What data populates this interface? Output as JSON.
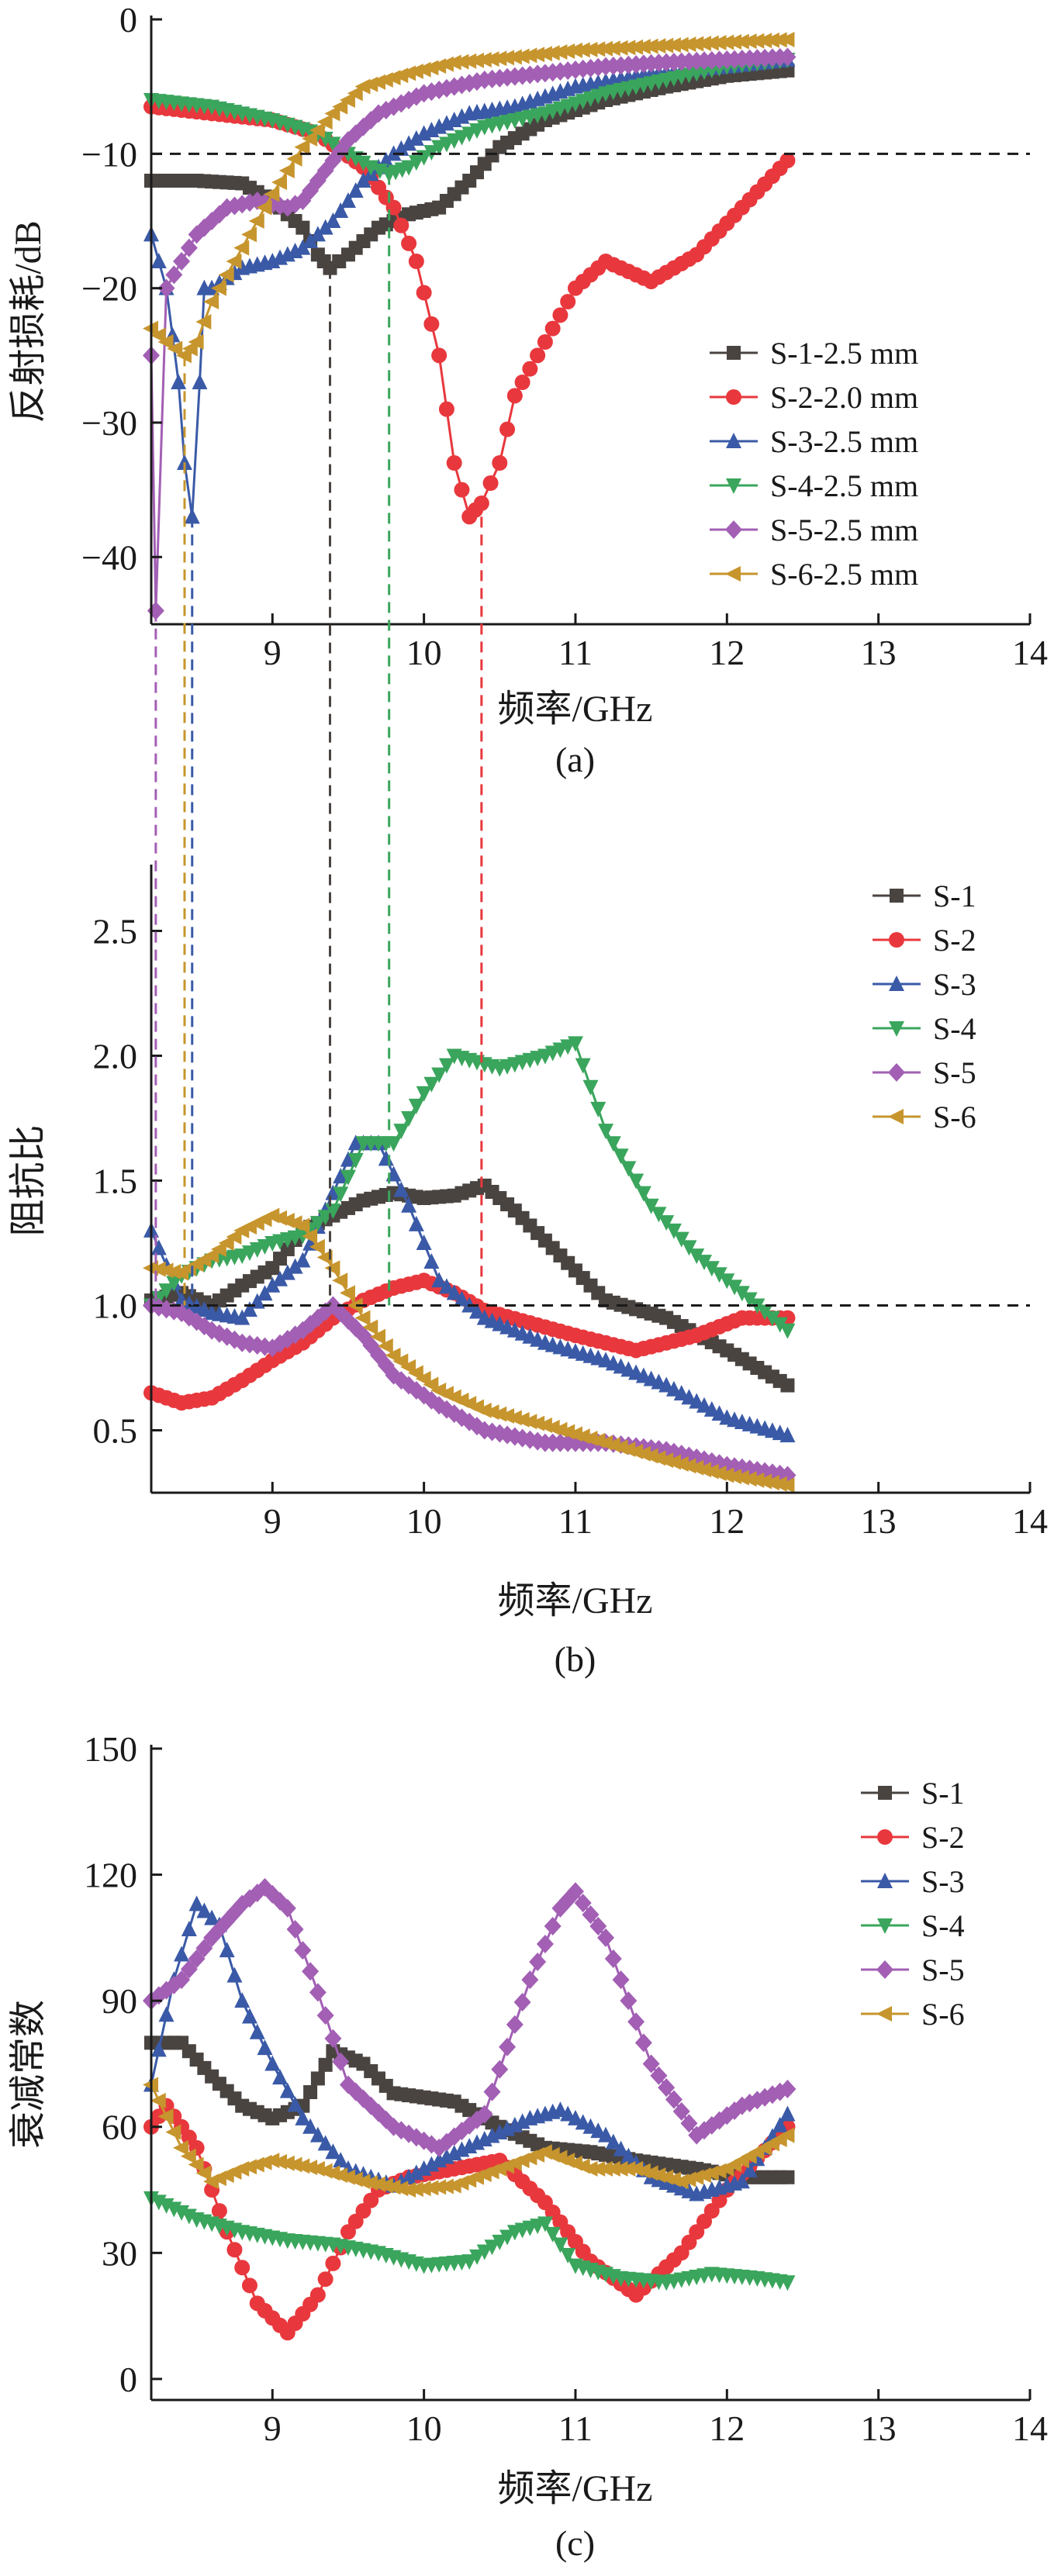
{
  "colors": {
    "S-1": "#4a4441",
    "S-2": "#e8383d",
    "S-3": "#3a5aa7",
    "S-4": "#3aa55c",
    "S-5": "#a25fb4",
    "S-6": "#c7952d"
  },
  "chart_data": [
    {
      "type": "line",
      "panel_label": "(a)",
      "xlabel": "频率/GHz",
      "ylabel": "反射损耗/dB",
      "xlim": [
        8.2,
        14
      ],
      "ylim": [
        -45,
        0
      ],
      "xticks": [
        9,
        10,
        11,
        12,
        13,
        14
      ],
      "yticks": [
        0,
        -10,
        -20,
        -30,
        -40
      ],
      "xtick_labels": [
        "9",
        "10",
        "11",
        "12",
        "13",
        "14"
      ],
      "ytick_labels": [
        "0",
        "−10",
        "−20",
        "−30",
        "−40"
      ],
      "legend_position": "right",
      "reference_hline": -10,
      "vlines_down": [
        {
          "series": "S-1",
          "x": 9.38,
          "y_top": -18.5
        },
        {
          "series": "S-2",
          "x": 10.38,
          "y_top": -37
        },
        {
          "series": "S-3",
          "x": 8.47,
          "y_top": -37
        },
        {
          "series": "S-4",
          "x": 9.77,
          "y_top": -11.5
        },
        {
          "series": "S-5",
          "x": 8.23,
          "y_top": -44
        },
        {
          "series": "S-6",
          "x": 8.42,
          "y_top": -25
        }
      ],
      "series": [
        {
          "name": "S-1-2.5 mm",
          "key": "S-1",
          "marker": "square",
          "x": [
            8.2,
            8.5,
            8.8,
            9.0,
            9.2,
            9.3,
            9.38,
            9.5,
            9.7,
            9.9,
            10.1,
            10.3,
            10.5,
            10.8,
            11.2,
            11.6,
            12.0,
            12.4
          ],
          "y": [
            -12,
            -12,
            -12.2,
            -13.5,
            -15.5,
            -17.5,
            -18.5,
            -17.5,
            -15.5,
            -14.5,
            -14,
            -12,
            -9.5,
            -7.5,
            -6,
            -5,
            -4.2,
            -3.8
          ]
        },
        {
          "name": "S-2-2.0 mm",
          "key": "S-2",
          "marker": "circle",
          "x": [
            8.2,
            8.6,
            9.0,
            9.3,
            9.6,
            9.8,
            9.95,
            10.1,
            10.2,
            10.3,
            10.38,
            10.5,
            10.6,
            10.8,
            11.0,
            11.2,
            11.5,
            11.8,
            12.1,
            12.4
          ],
          "y": [
            -6.5,
            -7,
            -7.5,
            -8.5,
            -11,
            -14,
            -18,
            -25,
            -33,
            -37,
            -36,
            -33,
            -28,
            -24,
            -20,
            -18,
            -19.5,
            -17.5,
            -14,
            -10.5
          ]
        },
        {
          "name": "S-3-2.5 mm",
          "key": "S-3",
          "marker": "triangle-up",
          "x": [
            8.2,
            8.3,
            8.38,
            8.42,
            8.47,
            8.52,
            8.55,
            8.6,
            8.8,
            9.0,
            9.2,
            9.4,
            9.6,
            9.8,
            10.0,
            10.3,
            10.6,
            11.0,
            11.5,
            12.0,
            12.4
          ],
          "y": [
            -16,
            -20,
            -27,
            -33,
            -37,
            -27,
            -20,
            -20,
            -18.5,
            -18,
            -17,
            -15,
            -12,
            -10,
            -8.5,
            -7,
            -6.5,
            -5,
            -4,
            -3.5,
            -3
          ]
        },
        {
          "name": "S-4-2.5 mm",
          "key": "S-4",
          "marker": "triangle-down",
          "x": [
            8.2,
            8.6,
            9.0,
            9.3,
            9.5,
            9.65,
            9.77,
            9.9,
            10.1,
            10.4,
            10.8,
            11.2,
            11.6,
            12.0,
            12.4
          ],
          "y": [
            -6,
            -6.5,
            -7.5,
            -8.5,
            -10,
            -11,
            -11.5,
            -11,
            -9.5,
            -8,
            -7,
            -5.5,
            -4.5,
            -3.5,
            -3
          ]
        },
        {
          "name": "S-5-2.5 mm",
          "key": "S-5",
          "marker": "diamond",
          "x": [
            8.2,
            8.23,
            8.3,
            8.5,
            8.7,
            8.9,
            9.1,
            9.2,
            9.3,
            9.5,
            9.7,
            10.0,
            10.4,
            10.8,
            11.2,
            11.6,
            12.0,
            12.4
          ],
          "y": [
            -25,
            -44,
            -20,
            -16,
            -14,
            -13.5,
            -14,
            -13.5,
            -12,
            -9,
            -7,
            -5.5,
            -4.5,
            -4,
            -3.5,
            -3.2,
            -3,
            -2.8
          ]
        },
        {
          "name": "S-6-2.5 mm",
          "key": "S-6",
          "marker": "triangle-left",
          "x": [
            8.2,
            8.3,
            8.42,
            8.5,
            8.6,
            8.8,
            9.0,
            9.2,
            9.4,
            9.6,
            9.9,
            10.2,
            10.6,
            11.0,
            11.5,
            12.0,
            12.4
          ],
          "y": [
            -23,
            -24,
            -25,
            -24,
            -21,
            -17,
            -13,
            -9.5,
            -7,
            -5,
            -4,
            -3.2,
            -2.8,
            -2.3,
            -2,
            -1.7,
            -1.5
          ]
        }
      ]
    },
    {
      "type": "line",
      "panel_label": "(b)",
      "xlabel": "频率/GHz",
      "ylabel": "阻抗比",
      "xlim": [
        8.2,
        14
      ],
      "ylim": [
        0.25,
        2.75
      ],
      "xticks": [
        9,
        10,
        11,
        12,
        13,
        14
      ],
      "yticks": [
        0.5,
        1.0,
        1.5,
        2.0,
        2.5
      ],
      "xtick_labels": [
        "9",
        "10",
        "11",
        "12",
        "13",
        "14"
      ],
      "ytick_labels": [
        "0.5",
        "1.0",
        "1.5",
        "2.0",
        "2.5"
      ],
      "legend_position": "right",
      "reference_hline": 1.0,
      "series": [
        {
          "name": "S-1",
          "key": "S-1",
          "marker": "square",
          "x": [
            8.2,
            8.4,
            8.6,
            8.8,
            9.0,
            9.2,
            9.4,
            9.6,
            9.8,
            10.0,
            10.2,
            10.4,
            10.6,
            10.9,
            11.2,
            11.6,
            12.0,
            12.4
          ],
          "y": [
            1.02,
            1.05,
            1.0,
            1.08,
            1.15,
            1.3,
            1.36,
            1.42,
            1.45,
            1.43,
            1.44,
            1.48,
            1.38,
            1.2,
            1.02,
            0.95,
            0.82,
            0.68
          ]
        },
        {
          "name": "S-2",
          "key": "S-2",
          "marker": "circle",
          "x": [
            8.2,
            8.4,
            8.6,
            8.8,
            9.0,
            9.2,
            9.4,
            9.6,
            9.8,
            10.0,
            10.2,
            10.4,
            10.7,
            11.0,
            11.4,
            11.8,
            12.1,
            12.4
          ],
          "y": [
            0.65,
            0.61,
            0.63,
            0.7,
            0.78,
            0.85,
            0.95,
            1.02,
            1.07,
            1.1,
            1.05,
            0.98,
            0.93,
            0.88,
            0.82,
            0.88,
            0.95,
            0.95
          ]
        },
        {
          "name": "S-3",
          "key": "S-3",
          "marker": "triangle-up",
          "x": [
            8.2,
            8.4,
            8.6,
            8.8,
            9.0,
            9.2,
            9.4,
            9.55,
            9.7,
            9.9,
            10.1,
            10.4,
            10.8,
            11.2,
            11.6,
            12.0,
            12.4
          ],
          "y": [
            1.3,
            1.02,
            0.97,
            0.95,
            1.08,
            1.18,
            1.45,
            1.65,
            1.65,
            1.4,
            1.1,
            0.95,
            0.85,
            0.78,
            0.68,
            0.55,
            0.48
          ]
        },
        {
          "name": "S-4",
          "key": "S-4",
          "marker": "triangle-down",
          "x": [
            8.2,
            8.4,
            8.6,
            8.8,
            9.0,
            9.2,
            9.4,
            9.6,
            9.8,
            10.0,
            10.2,
            10.5,
            10.8,
            11.0,
            11.2,
            11.5,
            11.8,
            12.1,
            12.4
          ],
          "y": [
            1.0,
            1.12,
            1.18,
            1.2,
            1.25,
            1.28,
            1.38,
            1.65,
            1.65,
            1.85,
            2.0,
            1.95,
            2.0,
            2.05,
            1.7,
            1.4,
            1.2,
            1.05,
            0.9
          ]
        },
        {
          "name": "S-5",
          "key": "S-5",
          "marker": "diamond",
          "x": [
            8.2,
            8.4,
            8.6,
            8.8,
            9.0,
            9.2,
            9.4,
            9.6,
            9.8,
            10.1,
            10.4,
            10.8,
            11.2,
            11.6,
            12.0,
            12.4
          ],
          "y": [
            1.0,
            0.97,
            0.9,
            0.85,
            0.83,
            0.9,
            1.0,
            0.88,
            0.72,
            0.6,
            0.5,
            0.45,
            0.45,
            0.42,
            0.36,
            0.32
          ]
        },
        {
          "name": "S-6",
          "key": "S-6",
          "marker": "triangle-left",
          "x": [
            8.2,
            8.4,
            8.6,
            8.8,
            9.0,
            9.2,
            9.4,
            9.6,
            9.8,
            10.1,
            10.4,
            10.8,
            11.2,
            11.6,
            12.0,
            12.4
          ],
          "y": [
            1.15,
            1.13,
            1.2,
            1.3,
            1.36,
            1.32,
            1.15,
            0.95,
            0.8,
            0.66,
            0.58,
            0.52,
            0.45,
            0.38,
            0.32,
            0.28
          ]
        }
      ]
    },
    {
      "type": "line",
      "panel_label": "(c)",
      "xlabel": "频率/GHz",
      "ylabel": "衰减常数",
      "xlim": [
        8.2,
        14
      ],
      "ylim": [
        -5,
        150
      ],
      "xticks": [
        9,
        10,
        11,
        12,
        13,
        14
      ],
      "yticks": [
        0,
        30,
        60,
        90,
        120,
        150
      ],
      "xtick_labels": [
        "9",
        "10",
        "11",
        "12",
        "13",
        "14"
      ],
      "ytick_labels": [
        "0",
        "30",
        "60",
        "90",
        "120",
        "150"
      ],
      "legend_position": "right",
      "series": [
        {
          "name": "S-1",
          "key": "S-1",
          "marker": "square",
          "x": [
            8.2,
            8.4,
            8.6,
            8.8,
            9.0,
            9.2,
            9.4,
            9.6,
            9.8,
            10.0,
            10.2,
            10.5,
            10.8,
            11.1,
            11.4,
            11.8,
            12.1,
            12.4
          ],
          "y": [
            80,
            80,
            72,
            65,
            62,
            65,
            78,
            75,
            68,
            67,
            66,
            60,
            55,
            54,
            52,
            50,
            48,
            48
          ]
        },
        {
          "name": "S-2",
          "key": "S-2",
          "marker": "circle",
          "x": [
            8.2,
            8.3,
            8.5,
            8.7,
            8.9,
            9.1,
            9.3,
            9.5,
            9.7,
            9.9,
            10.2,
            10.5,
            10.8,
            11.1,
            11.4,
            11.7,
            12.0,
            12.4
          ],
          "y": [
            60,
            65,
            55,
            35,
            18,
            11,
            20,
            35,
            45,
            48,
            50,
            52,
            42,
            28,
            20,
            30,
            45,
            60
          ]
        },
        {
          "name": "S-3",
          "key": "S-3",
          "marker": "triangle-up",
          "x": [
            8.2,
            8.35,
            8.5,
            8.65,
            8.8,
            9.0,
            9.2,
            9.5,
            9.8,
            10.1,
            10.4,
            10.7,
            10.9,
            11.2,
            11.5,
            11.8,
            12.1,
            12.4
          ],
          "y": [
            70,
            95,
            113,
            108,
            90,
            75,
            62,
            50,
            46,
            52,
            57,
            62,
            64,
            58,
            48,
            44,
            47,
            63
          ]
        },
        {
          "name": "S-4",
          "key": "S-4",
          "marker": "triangle-down",
          "x": [
            8.2,
            8.5,
            8.8,
            9.1,
            9.4,
            9.7,
            10.0,
            10.3,
            10.6,
            10.8,
            11.0,
            11.3,
            11.6,
            11.9,
            12.2,
            12.4
          ],
          "y": [
            43,
            38,
            35,
            33,
            32,
            30,
            27,
            28,
            35,
            37,
            27,
            24,
            23,
            25,
            24,
            23
          ]
        },
        {
          "name": "S-5",
          "key": "S-5",
          "marker": "diamond",
          "x": [
            8.2,
            8.4,
            8.6,
            8.8,
            8.95,
            9.1,
            9.3,
            9.5,
            9.8,
            10.1,
            10.4,
            10.7,
            10.9,
            11.0,
            11.2,
            11.5,
            11.8,
            12.1,
            12.4
          ],
          "y": [
            90,
            95,
            105,
            113,
            117,
            112,
            92,
            70,
            60,
            55,
            63,
            95,
            112,
            116,
            105,
            75,
            58,
            65,
            69
          ]
        },
        {
          "name": "S-6",
          "key": "S-6",
          "marker": "triangle-left",
          "x": [
            8.2,
            8.4,
            8.6,
            8.8,
            9.0,
            9.3,
            9.6,
            9.9,
            10.2,
            10.5,
            10.8,
            11.1,
            11.4,
            11.7,
            12.0,
            12.4
          ],
          "y": [
            70,
            55,
            47,
            50,
            52,
            50,
            47,
            45,
            46,
            50,
            54,
            50,
            50,
            47,
            50,
            58
          ]
        }
      ]
    }
  ]
}
